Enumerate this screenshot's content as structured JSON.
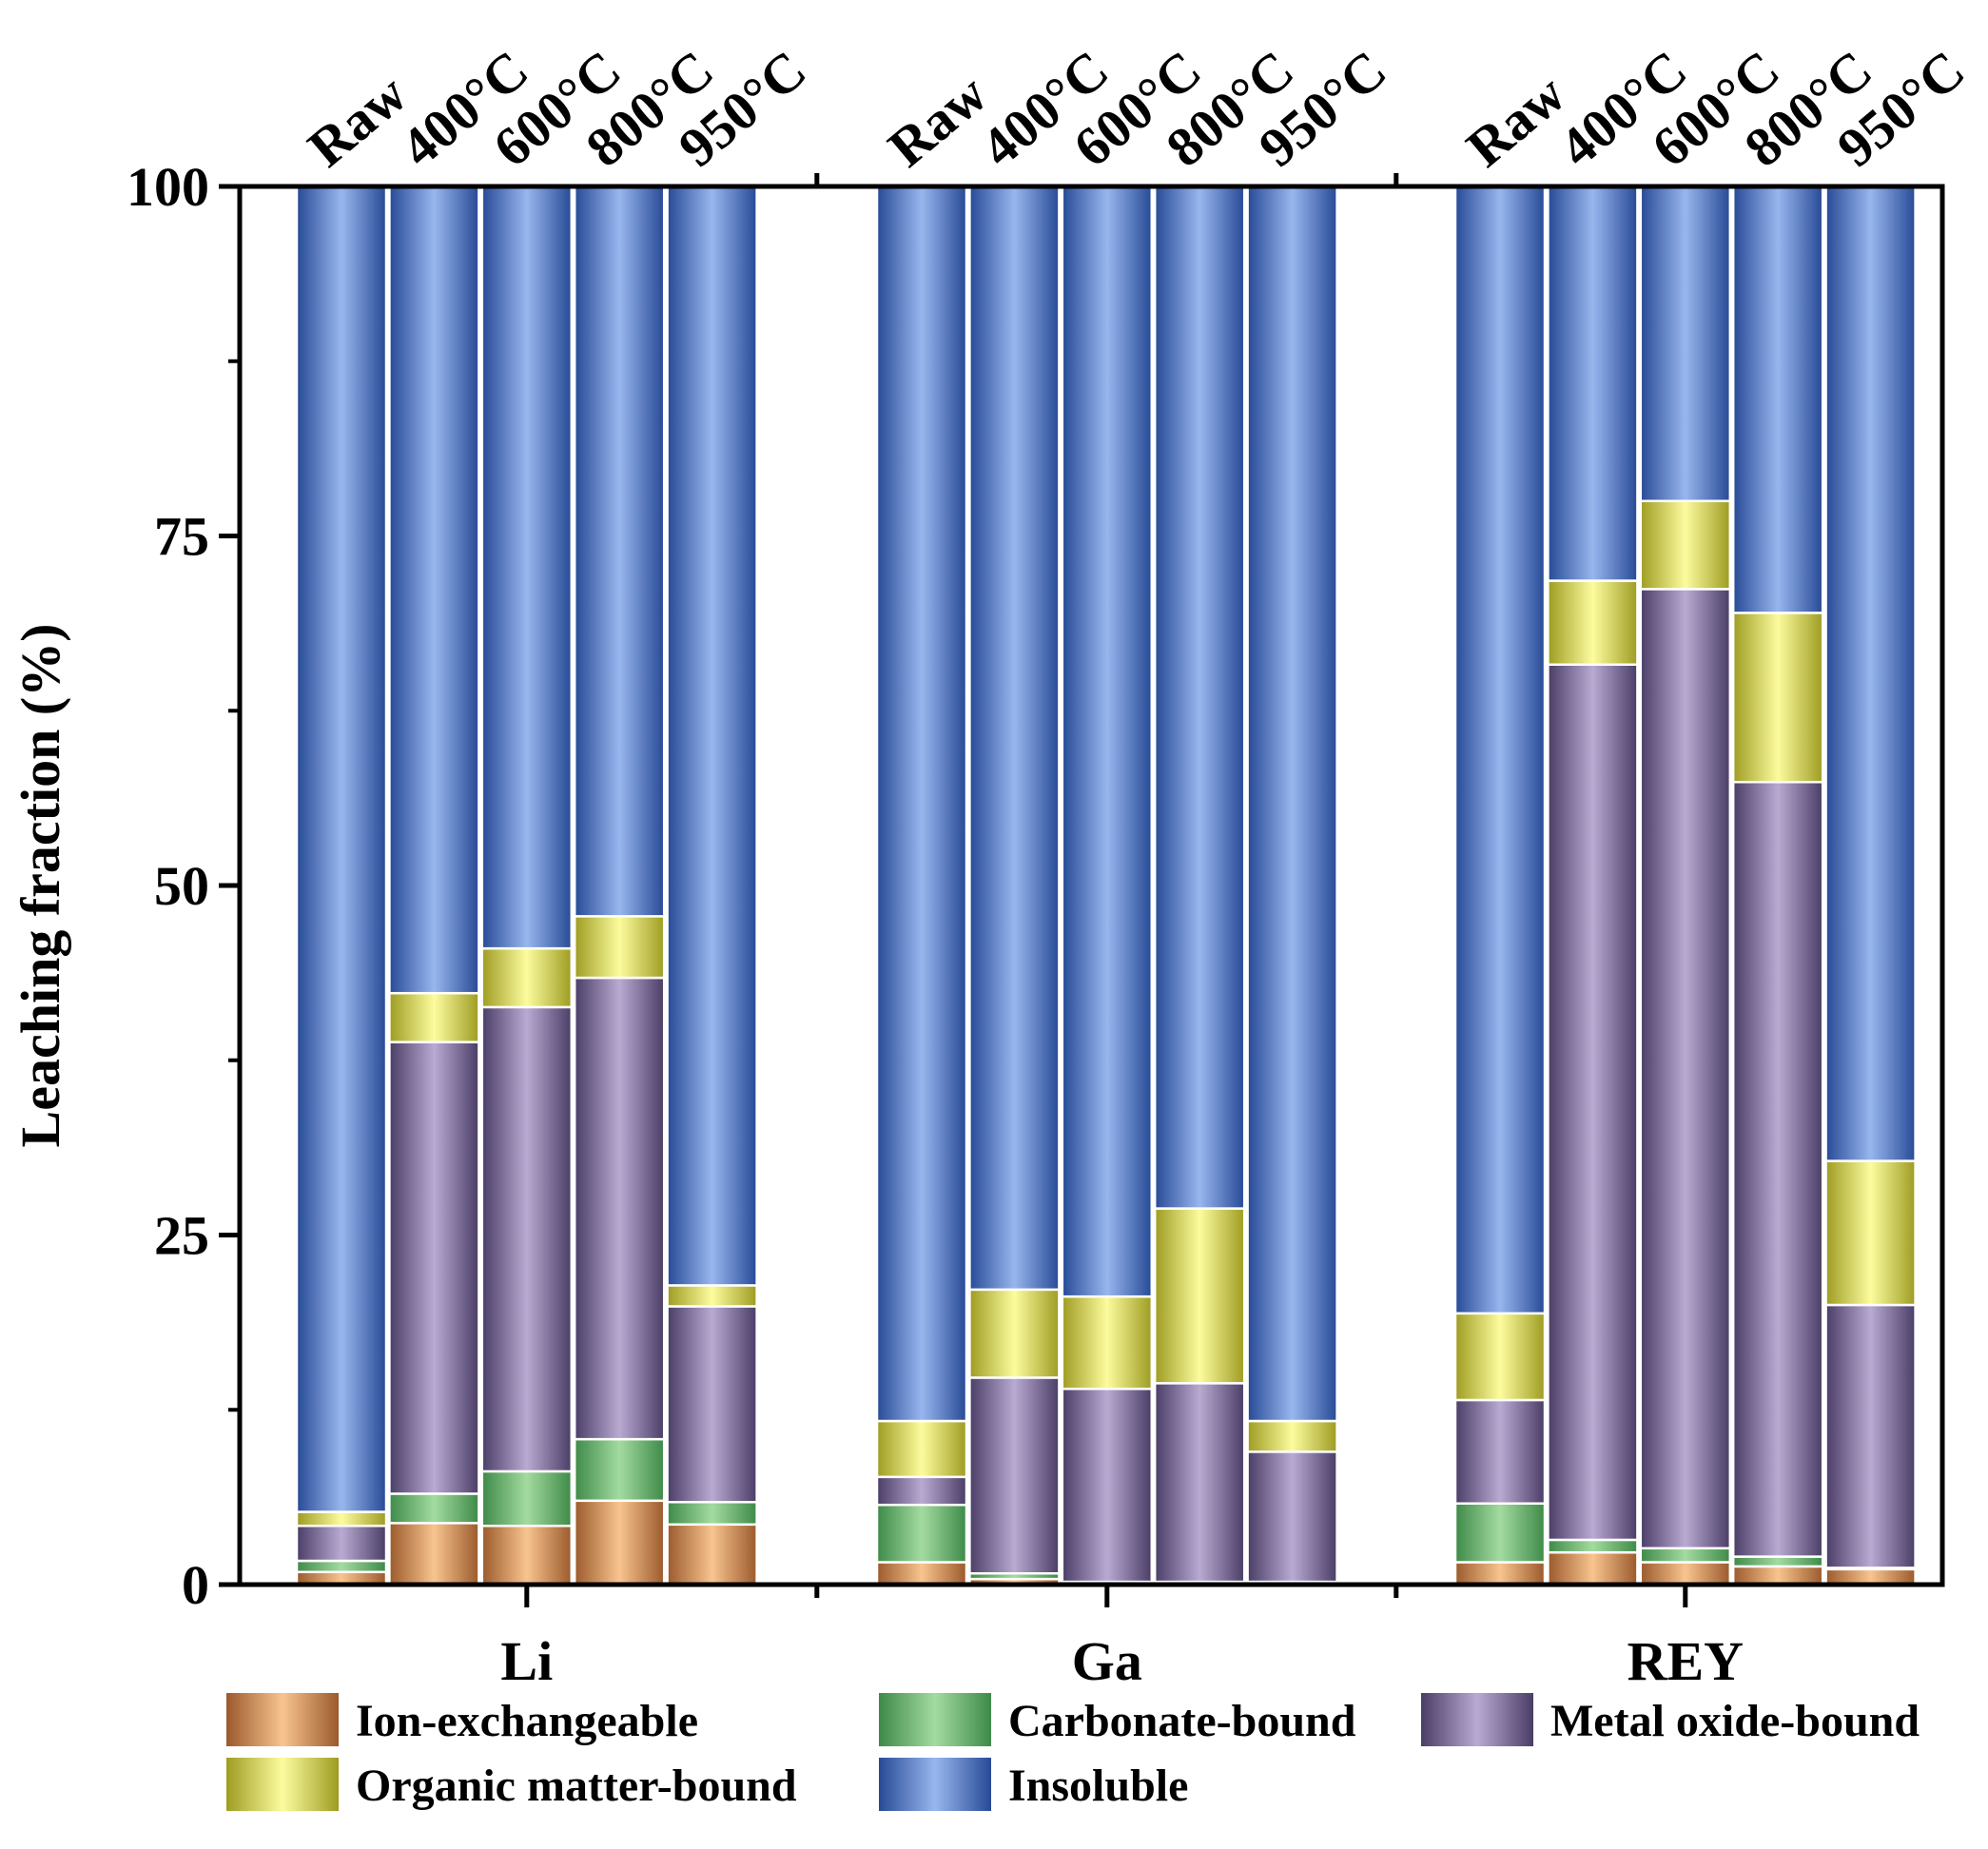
{
  "chart_data": {
    "type": "bar",
    "stacked": true,
    "ylabel": "Leaching fraction (%)",
    "ylim": [
      0,
      100
    ],
    "yticks": [
      0,
      25,
      50,
      75,
      100
    ],
    "groups": [
      {
        "name": "Li",
        "bars": [
          {
            "label": "Raw",
            "values": [
              0.9,
              0.8,
              2.5,
              1.0,
              94.8
            ]
          },
          {
            "label": "400°C",
            "values": [
              4.4,
              2.1,
              32.3,
              3.5,
              57.7
            ]
          },
          {
            "label": "600°C",
            "values": [
              4.2,
              3.9,
              33.2,
              4.2,
              54.5
            ]
          },
          {
            "label": "800°C",
            "values": [
              6.0,
              4.4,
              33.0,
              4.4,
              52.2
            ]
          },
          {
            "label": "950°C",
            "values": [
              4.3,
              1.6,
              14.0,
              1.5,
              78.6
            ]
          }
        ]
      },
      {
        "name": "Ga",
        "bars": [
          {
            "label": "Raw",
            "values": [
              1.6,
              4.1,
              2.0,
              4.0,
              88.3
            ]
          },
          {
            "label": "400°C",
            "values": [
              0.4,
              0.4,
              14.0,
              6.3,
              78.9
            ]
          },
          {
            "label": "600°C",
            "values": [
              0.1,
              0.1,
              13.8,
              6.6,
              79.4
            ]
          },
          {
            "label": "800°C",
            "values": [
              0.1,
              0.1,
              14.2,
              12.5,
              73.1
            ]
          },
          {
            "label": "950°C",
            "values": [
              0.1,
              0.1,
              9.3,
              2.2,
              88.3
            ]
          }
        ]
      },
      {
        "name": "REY",
        "bars": [
          {
            "label": "Raw",
            "values": [
              1.6,
              4.2,
              7.4,
              6.2,
              80.6
            ]
          },
          {
            "label": "400°C",
            "values": [
              2.3,
              0.9,
              62.6,
              6.0,
              28.2
            ]
          },
          {
            "label": "600°C",
            "values": [
              1.6,
              1.0,
              68.6,
              6.3,
              22.5
            ]
          },
          {
            "label": "800°C",
            "values": [
              1.3,
              0.7,
              55.4,
              12.1,
              30.5
            ]
          },
          {
            "label": "950°C",
            "values": [
              1.1,
              0.1,
              18.8,
              10.3,
              69.7
            ]
          }
        ]
      }
    ],
    "series": [
      {
        "name": "Ion-exchangeable",
        "dark": "#9b5a2c",
        "light": "#f8c48f"
      },
      {
        "name": "Carbonate-bound",
        "dark": "#3e8a48",
        "light": "#a3dba0"
      },
      {
        "name": "Metal oxide-bound",
        "dark": "#4a3d66",
        "light": "#b9aad2"
      },
      {
        "name": "Organic matter-bound",
        "dark": "#9e9c22",
        "light": "#fcfc9e"
      },
      {
        "name": "Insoluble",
        "dark": "#274a96",
        "light": "#98b6ee"
      }
    ],
    "legend_position": "bottom"
  }
}
